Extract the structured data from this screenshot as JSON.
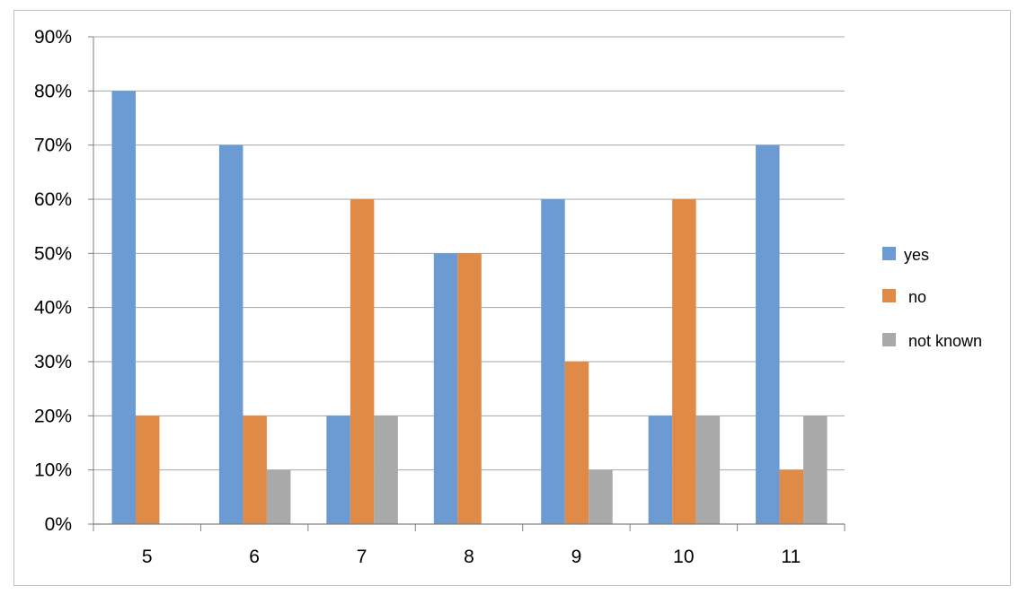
{
  "chart_data": {
    "type": "bar",
    "title": "",
    "xlabel": "",
    "ylabel": "",
    "categories": [
      "5",
      "6",
      "7",
      "8",
      "9",
      "10",
      "11"
    ],
    "series": [
      {
        "name": "yes",
        "color": "#6b9bd2",
        "values": [
          80,
          70,
          20,
          50,
          60,
          20,
          70
        ]
      },
      {
        "name": "no",
        "color": "#e08a48",
        "values": [
          20,
          20,
          60,
          50,
          30,
          60,
          10
        ]
      },
      {
        "name": "not known",
        "color": "#a9a9a9",
        "values": [
          0,
          10,
          20,
          0,
          10,
          20,
          20
        ]
      }
    ],
    "ylim": [
      0,
      90
    ],
    "yticks": [
      "0%",
      "10%",
      "20%",
      "30%",
      "40%",
      "50%",
      "60%",
      "70%",
      "80%",
      "90%"
    ],
    "grid": true,
    "legend": "right"
  }
}
